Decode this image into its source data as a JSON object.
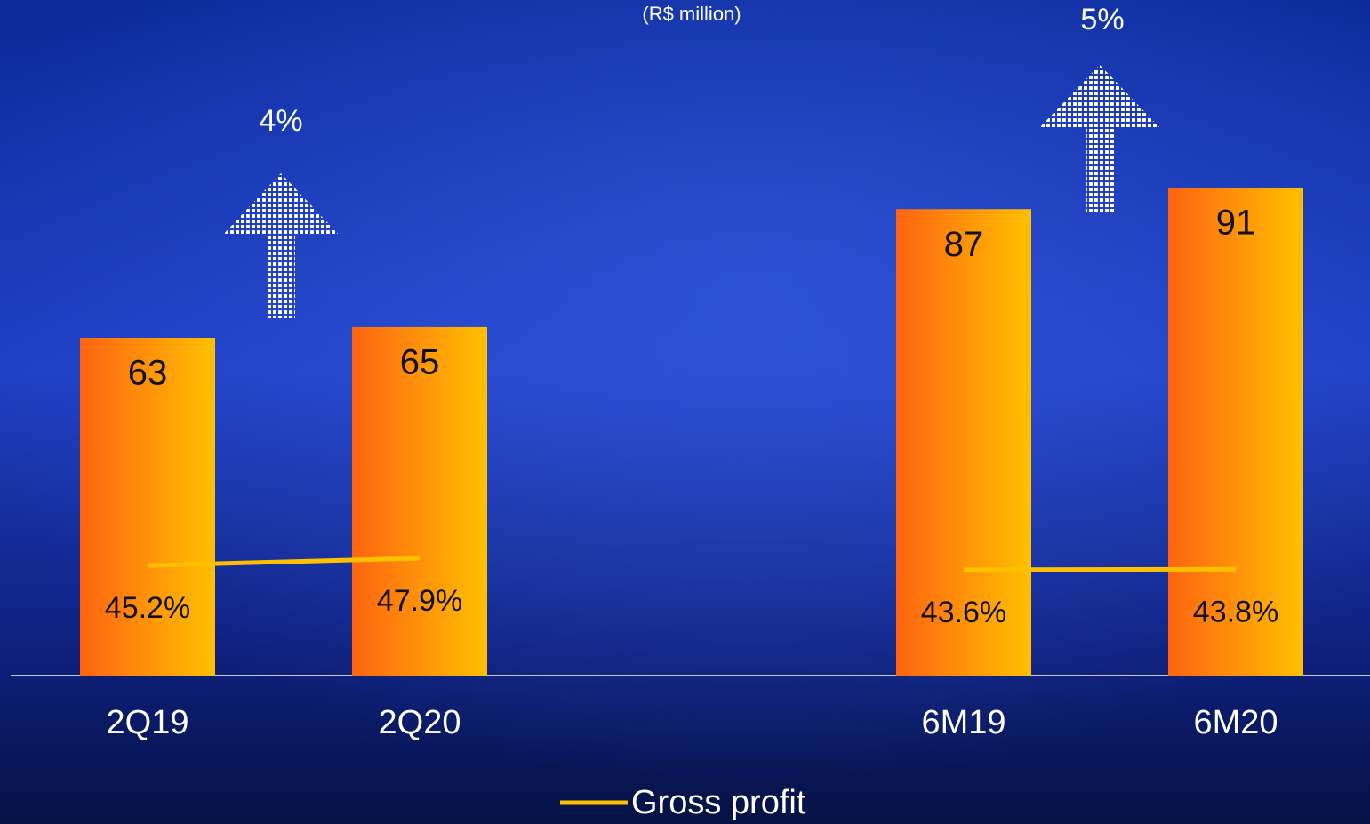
{
  "chart_data": {
    "type": "bar",
    "subtitle": "(R$ million)",
    "categories": [
      "2Q19",
      "2Q20",
      null,
      "6M19",
      "6M20"
    ],
    "ylim": [
      0,
      126
    ],
    "y2lim": [
      3.9,
      257.2
    ],
    "gradient": [
      "#ff6412",
      "#ffc000"
    ],
    "series": [
      {
        "values": [
          63,
          65,
          null,
          87,
          91
        ]
      },
      {
        "name": "Gross profit",
        "type": "line",
        "axis": "y2",
        "color": "#ffc000",
        "values": [
          45.2,
          47.9,
          null,
          43.6,
          43.8
        ],
        "value_labels": [
          "45.2%",
          "47.9%",
          null,
          "43.6%",
          "43.8%"
        ]
      }
    ],
    "annotations": [
      "4%",
      "5%"
    ],
    "legend": "bottom"
  }
}
